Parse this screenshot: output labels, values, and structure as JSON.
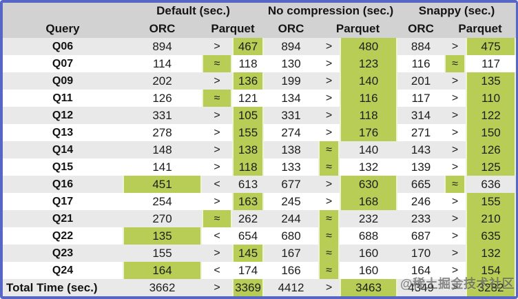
{
  "chart_data": {
    "type": "table",
    "query_header": "Query",
    "column_groups": [
      {
        "label": "Default (sec.)",
        "sub": [
          "ORC",
          "Parquet"
        ]
      },
      {
        "label": "No compression (sec.)",
        "sub": [
          "ORC",
          "Parquet"
        ]
      },
      {
        "label": "Snappy (sec.)",
        "sub": [
          "ORC",
          "Parquet"
        ]
      }
    ],
    "highlight_meaning": "green cell marks the faster format; green on comparison symbol marks approximately equal",
    "rows": [
      {
        "query": "Q06",
        "cells": [
          {
            "orc": "894",
            "cmp": ">",
            "parquet": "467",
            "hl": "parquet"
          },
          {
            "orc": "894",
            "cmp": ">",
            "parquet": "480",
            "hl": "parquet"
          },
          {
            "orc": "884",
            "cmp": ">",
            "parquet": "475",
            "hl": "parquet"
          }
        ]
      },
      {
        "query": "Q07",
        "cells": [
          {
            "orc": "114",
            "cmp": "≈",
            "parquet": "118",
            "hl": "cmp"
          },
          {
            "orc": "130",
            "cmp": ">",
            "parquet": "123",
            "hl": "parquet"
          },
          {
            "orc": "116",
            "cmp": "≈",
            "parquet": "117",
            "hl": "cmp"
          }
        ]
      },
      {
        "query": "Q09",
        "cells": [
          {
            "orc": "202",
            "cmp": ">",
            "parquet": "136",
            "hl": "parquet"
          },
          {
            "orc": "199",
            "cmp": ">",
            "parquet": "140",
            "hl": "parquet"
          },
          {
            "orc": "201",
            "cmp": ">",
            "parquet": "135",
            "hl": "parquet"
          }
        ]
      },
      {
        "query": "Q11",
        "cells": [
          {
            "orc": "126",
            "cmp": "≈",
            "parquet": "121",
            "hl": "cmp"
          },
          {
            "orc": "134",
            "cmp": ">",
            "parquet": "116",
            "hl": "parquet"
          },
          {
            "orc": "117",
            "cmp": ">",
            "parquet": "110",
            "hl": "parquet"
          }
        ]
      },
      {
        "query": "Q12",
        "cells": [
          {
            "orc": "331",
            "cmp": ">",
            "parquet": "105",
            "hl": "parquet"
          },
          {
            "orc": "331",
            "cmp": ">",
            "parquet": "118",
            "hl": "parquet"
          },
          {
            "orc": "314",
            "cmp": ">",
            "parquet": "122",
            "hl": "parquet"
          }
        ]
      },
      {
        "query": "Q13",
        "cells": [
          {
            "orc": "278",
            "cmp": ">",
            "parquet": "155",
            "hl": "parquet"
          },
          {
            "orc": "274",
            "cmp": ">",
            "parquet": "176",
            "hl": "parquet"
          },
          {
            "orc": "271",
            "cmp": ">",
            "parquet": "150",
            "hl": "parquet"
          }
        ]
      },
      {
        "query": "Q14",
        "cells": [
          {
            "orc": "148",
            "cmp": ">",
            "parquet": "138",
            "hl": "parquet"
          },
          {
            "orc": "138",
            "cmp": "≈",
            "parquet": "140",
            "hl": "cmp"
          },
          {
            "orc": "143",
            "cmp": ">",
            "parquet": "126",
            "hl": "parquet"
          }
        ]
      },
      {
        "query": "Q15",
        "cells": [
          {
            "orc": "141",
            "cmp": ">",
            "parquet": "118",
            "hl": "parquet"
          },
          {
            "orc": "133",
            "cmp": "≈",
            "parquet": "132",
            "hl": "cmp"
          },
          {
            "orc": "139",
            "cmp": ">",
            "parquet": "125",
            "hl": "parquet"
          }
        ]
      },
      {
        "query": "Q16",
        "cells": [
          {
            "orc": "451",
            "cmp": "<",
            "parquet": "613",
            "hl": "orc"
          },
          {
            "orc": "677",
            "cmp": ">",
            "parquet": "630",
            "hl": "parquet"
          },
          {
            "orc": "665",
            "cmp": "≈",
            "parquet": "636",
            "hl": "cmp"
          }
        ]
      },
      {
        "query": "Q17",
        "cells": [
          {
            "orc": "254",
            "cmp": ">",
            "parquet": "163",
            "hl": "parquet"
          },
          {
            "orc": "245",
            "cmp": ">",
            "parquet": "168",
            "hl": "parquet"
          },
          {
            "orc": "246",
            "cmp": ">",
            "parquet": "155",
            "hl": "parquet"
          }
        ]
      },
      {
        "query": "Q21",
        "cells": [
          {
            "orc": "270",
            "cmp": "≈",
            "parquet": "262",
            "hl": "cmp"
          },
          {
            "orc": "244",
            "cmp": "≈",
            "parquet": "232",
            "hl": "cmp"
          },
          {
            "orc": "233",
            "cmp": ">",
            "parquet": "210",
            "hl": "parquet"
          }
        ]
      },
      {
        "query": "Q22",
        "cells": [
          {
            "orc": "135",
            "cmp": "<",
            "parquet": "654",
            "hl": "orc"
          },
          {
            "orc": "680",
            "cmp": "≈",
            "parquet": "688",
            "hl": "cmp"
          },
          {
            "orc": "687",
            "cmp": ">",
            "parquet": "635",
            "hl": "parquet"
          }
        ]
      },
      {
        "query": "Q23",
        "cells": [
          {
            "orc": "155",
            "cmp": ">",
            "parquet": "145",
            "hl": "parquet"
          },
          {
            "orc": "167",
            "cmp": "≈",
            "parquet": "160",
            "hl": "cmp"
          },
          {
            "orc": "170",
            "cmp": ">",
            "parquet": "132",
            "hl": "parquet"
          }
        ]
      },
      {
        "query": "Q24",
        "cells": [
          {
            "orc": "164",
            "cmp": "<",
            "parquet": "174",
            "hl": "orc"
          },
          {
            "orc": "166",
            "cmp": "≈",
            "parquet": "160",
            "hl": "cmp"
          },
          {
            "orc": "164",
            "cmp": ">",
            "parquet": "154",
            "hl": "parquet"
          }
        ]
      },
      {
        "query": "Total Time (sec.)",
        "is_total": true,
        "cells": [
          {
            "orc": "3662",
            "cmp": ">",
            "parquet": "3369",
            "hl": "parquet"
          },
          {
            "orc": "4412",
            "cmp": ">",
            "parquet": "3463",
            "hl": "parquet"
          },
          {
            "orc": "4349",
            "cmp": ">",
            "parquet": "3282",
            "hl": "parquet"
          }
        ]
      }
    ]
  },
  "watermark": {
    "text": "@稀土掘金技术社区"
  },
  "colors": {
    "highlight_green": "#b7cd55",
    "frame_blue": "#5566c5",
    "header_grey": "#d2d2d2",
    "row_alt_grey": "#e9e9e9"
  }
}
